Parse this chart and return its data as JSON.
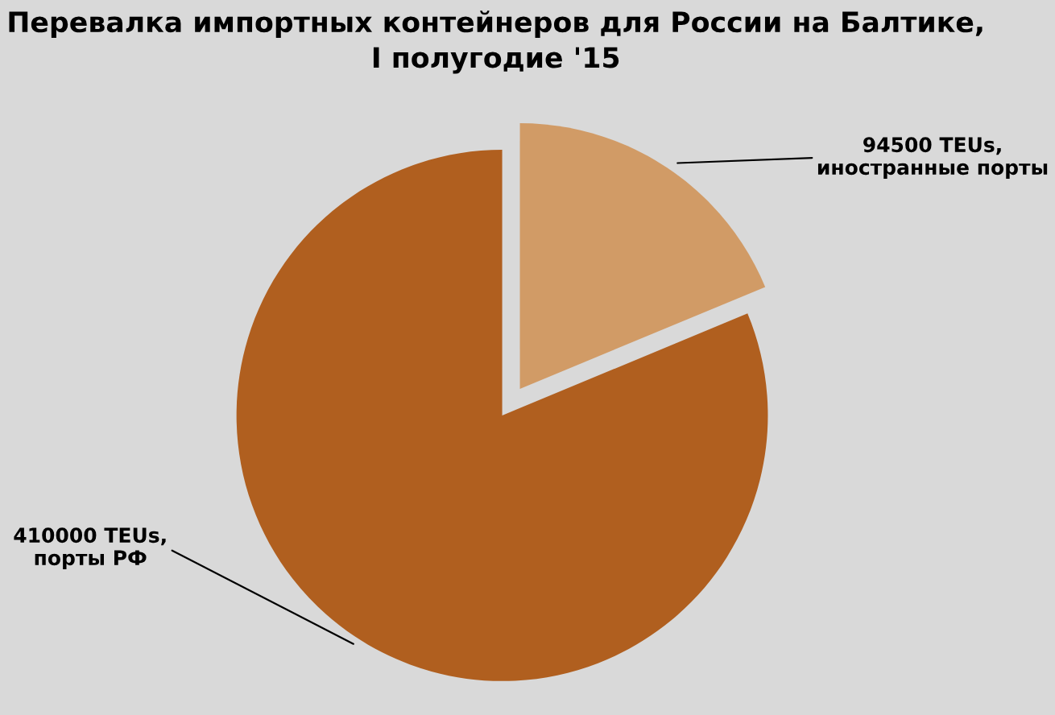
{
  "chart_data": {
    "type": "pie",
    "title": "Перевалка импортных контейнеров для России на Балтике,\nI полугодие '15",
    "categories": [
      "иностранные порты",
      "порты РФ"
    ],
    "values": [
      94500,
      410000
    ],
    "value_labels": [
      "94500 TEUs,",
      "410000 TEUs,"
    ],
    "colors": [
      "#d19b66",
      "#b05f1f"
    ]
  }
}
